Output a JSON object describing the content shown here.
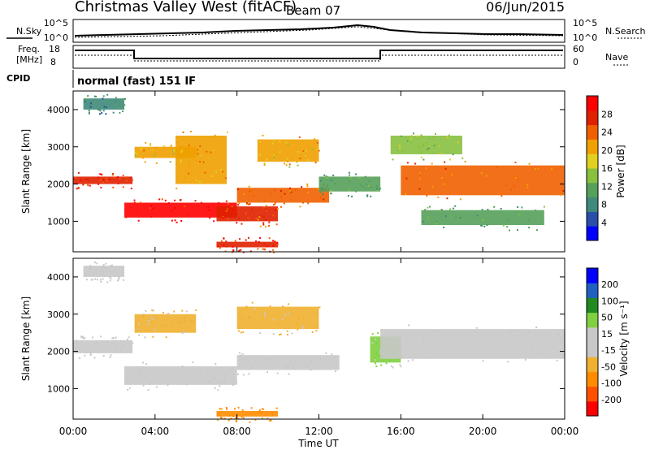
{
  "header": {
    "station": "Christmas Valley West (fitACF)",
    "beam": "Beam 07",
    "date": "06/Jun/2015"
  },
  "noise_panel": {
    "left_label": "N.Sky",
    "right_label": "N.Search",
    "left_ticks": [
      "10^5",
      "10^0"
    ],
    "right_ticks": [
      "10^5",
      "10^0"
    ]
  },
  "freq_panel": {
    "left_label_1": "Freq.",
    "left_label_2": "[MHz]",
    "right_label": "Nave",
    "left_ticks": [
      "18",
      "8"
    ],
    "right_ticks": [
      "60",
      "0"
    ]
  },
  "cpid": {
    "label": "CPID",
    "value": "normal (fast) 151 IF"
  },
  "colors": {
    "power_scale": [
      "#0000ff",
      "#2a4fa8",
      "#3f8a7a",
      "#55a05a",
      "#88c040",
      "#e0d020",
      "#f0a000",
      "#f06000",
      "#e02000",
      "#ff0000"
    ],
    "velocity_scale": [
      "#ff0000",
      "#ff5000",
      "#ff8c00",
      "#f0b030",
      "#c8c8c8",
      "#c8c8c8",
      "#80d040",
      "#208a20",
      "#2060c0",
      "#0000ff"
    ],
    "power_series": "#f06000",
    "velocity_series": "#c8c8c8"
  },
  "chart_data": [
    {
      "type": "heatmap",
      "panel": "power",
      "xlabel": "Time UT",
      "ylabel": "Slant Range [km]",
      "x_ticks": [
        "00:00",
        "04:00",
        "08:00",
        "12:00",
        "16:00",
        "20:00",
        "00:00"
      ],
      "y_ticks": [
        1000,
        2000,
        3000,
        4000
      ],
      "xlim_hours": [
        0,
        24
      ],
      "ylim_km": [
        180,
        4500
      ],
      "colorbar": {
        "label": "Power [dB]",
        "ticks": [
          4,
          8,
          12,
          16,
          20,
          24,
          28
        ],
        "range": [
          0,
          30
        ]
      },
      "bands": [
        {
          "t0": 0.0,
          "t1": 2.9,
          "r0": 2000,
          "r1": 2200,
          "level": 25
        },
        {
          "t0": 2.5,
          "t1": 8.0,
          "r0": 1100,
          "r1": 1500,
          "level": 27
        },
        {
          "t0": 3.0,
          "t1": 6.0,
          "r0": 2700,
          "r1": 3000,
          "level": 18
        },
        {
          "t0": 5.0,
          "t1": 7.5,
          "r0": 2000,
          "r1": 3300,
          "level": 20
        },
        {
          "t0": 7.0,
          "t1": 10.0,
          "r0": 1000,
          "r1": 1400,
          "level": 24
        },
        {
          "t0": 8.0,
          "t1": 12.5,
          "r0": 1500,
          "r1": 1900,
          "level": 22
        },
        {
          "t0": 9.0,
          "t1": 12.0,
          "r0": 2600,
          "r1": 3200,
          "level": 18
        },
        {
          "t0": 7.0,
          "t1": 10.0,
          "r0": 300,
          "r1": 450,
          "level": 26
        },
        {
          "t0": 12.0,
          "t1": 15.0,
          "r0": 1800,
          "r1": 2200,
          "level": 10
        },
        {
          "t0": 16.0,
          "t1": 24.0,
          "r0": 1700,
          "r1": 2500,
          "level": 22
        },
        {
          "t0": 15.5,
          "t1": 19.0,
          "r0": 2800,
          "r1": 3300,
          "level": 14
        },
        {
          "t0": 17.0,
          "t1": 23.0,
          "r0": 900,
          "r1": 1300,
          "level": 10
        },
        {
          "t0": 0.5,
          "t1": 2.5,
          "r0": 4000,
          "r1": 4300,
          "level": 8
        }
      ]
    },
    {
      "type": "heatmap",
      "panel": "velocity",
      "xlabel": "Time UT",
      "ylabel": "Slant Range [km]",
      "x_ticks": [
        "00:00",
        "04:00",
        "08:00",
        "12:00",
        "16:00",
        "20:00",
        "00:00"
      ],
      "y_ticks": [
        1000,
        2000,
        3000,
        4000
      ],
      "xlim_hours": [
        0,
        24
      ],
      "ylim_km": [
        180,
        4500
      ],
      "colorbar": {
        "label": "Velocity [m s⁻¹]",
        "ticks": [
          "200",
          "100",
          "50",
          "15",
          "-15",
          "-50",
          "-100",
          "-200"
        ],
        "range": [
          -250,
          250
        ]
      },
      "bands": [
        {
          "t0": 0.0,
          "t1": 2.9,
          "r0": 1950,
          "r1": 2300,
          "level": 0
        },
        {
          "t0": 3.0,
          "t1": 6.0,
          "r0": 2500,
          "r1": 3000,
          "level": -60
        },
        {
          "t0": 2.5,
          "t1": 8.0,
          "r0": 1100,
          "r1": 1600,
          "level": 0
        },
        {
          "t0": 8.0,
          "t1": 12.0,
          "r0": 2600,
          "r1": 3200,
          "level": -60
        },
        {
          "t0": 8.0,
          "t1": 13.0,
          "r0": 1500,
          "r1": 1900,
          "level": 0
        },
        {
          "t0": 14.5,
          "t1": 16.0,
          "r0": 1700,
          "r1": 2400,
          "level": 60
        },
        {
          "t0": 15.0,
          "t1": 24.0,
          "r0": 1800,
          "r1": 2600,
          "level": 0
        },
        {
          "t0": 7.0,
          "t1": 10.0,
          "r0": 250,
          "r1": 400,
          "level": -120
        },
        {
          "t0": 0.5,
          "t1": 2.5,
          "r0": 4000,
          "r1": 4300,
          "level": 0
        }
      ]
    }
  ]
}
